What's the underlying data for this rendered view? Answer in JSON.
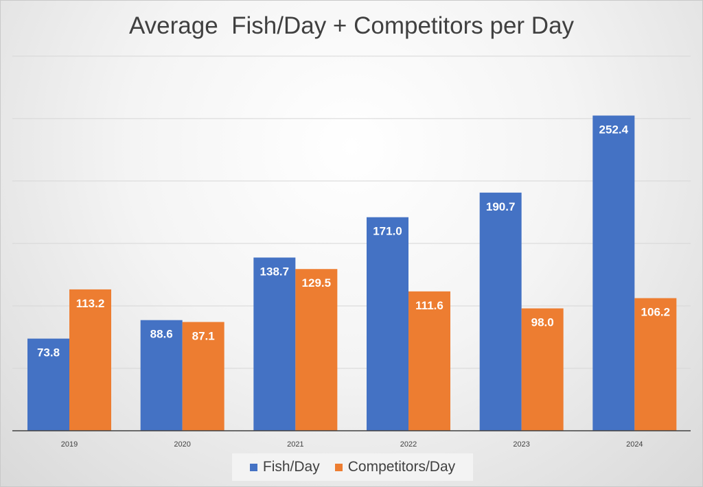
{
  "chart_data": {
    "type": "bar",
    "title": "Average  Fish/Day + Competitors per Day",
    "categories": [
      "2019",
      "2020",
      "2021",
      "2022",
      "2023",
      "2024"
    ],
    "series": [
      {
        "name": "Fish/Day",
        "color": "#4472C4",
        "values": [
          73.8,
          88.6,
          138.7,
          171.0,
          190.7,
          252.4
        ]
      },
      {
        "name": "Competitors/Day",
        "color": "#ED7D31",
        "values": [
          113.2,
          87.1,
          129.5,
          111.6,
          98.0,
          106.2
        ]
      }
    ],
    "ylim": [
      0,
      300
    ],
    "y_gridlines": [
      50,
      100,
      150,
      200,
      250,
      300
    ],
    "y_tick_labels_shown": false,
    "grid": true,
    "data_labels": true,
    "legend_position": "bottom"
  }
}
